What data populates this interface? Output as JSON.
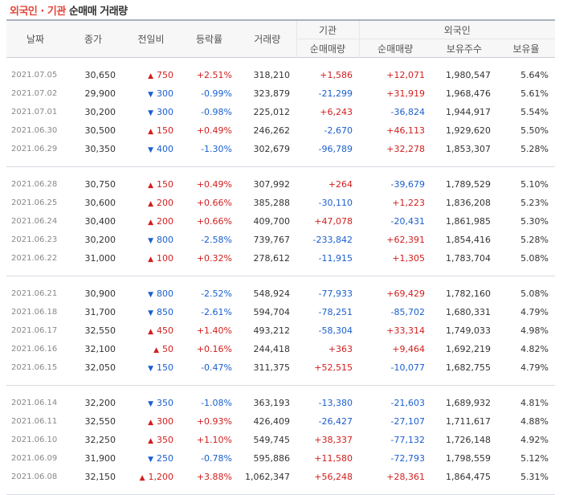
{
  "title": {
    "part1": "외국인",
    "sep": " · ",
    "part2": "기관",
    "part3": " 순매매 거래량"
  },
  "headers": {
    "date": "날짜",
    "close": "종가",
    "change": "전일비",
    "rate": "등락률",
    "volume": "거래량",
    "institution": "기관",
    "foreign": "외국인",
    "inst_net": "순매매량",
    "foreign_net": "순매매량",
    "holdings": "보유주수",
    "ratio": "보유율"
  },
  "colors": {
    "up": "#d21e1e",
    "down": "#1b5fcf",
    "title_accent": "#e2463b"
  },
  "groups": [
    [
      {
        "date": "2021.07.05",
        "close": "30,650",
        "dir": "up",
        "change": "750",
        "rate": "+2.51%",
        "volume": "318,210",
        "inst": "+1,586",
        "foreign": "+12,071",
        "holdings": "1,980,547",
        "ratio": "5.64%"
      },
      {
        "date": "2021.07.02",
        "close": "29,900",
        "dir": "down",
        "change": "300",
        "rate": "-0.99%",
        "volume": "323,879",
        "inst": "-21,299",
        "foreign": "+31,919",
        "holdings": "1,968,476",
        "ratio": "5.61%"
      },
      {
        "date": "2021.07.01",
        "close": "30,200",
        "dir": "down",
        "change": "300",
        "rate": "-0.98%",
        "volume": "225,012",
        "inst": "+6,243",
        "foreign": "-36,824",
        "holdings": "1,944,917",
        "ratio": "5.54%"
      },
      {
        "date": "2021.06.30",
        "close": "30,500",
        "dir": "up",
        "change": "150",
        "rate": "+0.49%",
        "volume": "246,262",
        "inst": "-2,670",
        "foreign": "+46,113",
        "holdings": "1,929,620",
        "ratio": "5.50%"
      },
      {
        "date": "2021.06.29",
        "close": "30,350",
        "dir": "down",
        "change": "400",
        "rate": "-1.30%",
        "volume": "302,679",
        "inst": "-96,789",
        "foreign": "+32,278",
        "holdings": "1,853,307",
        "ratio": "5.28%"
      }
    ],
    [
      {
        "date": "2021.06.28",
        "close": "30,750",
        "dir": "up",
        "change": "150",
        "rate": "+0.49%",
        "volume": "307,992",
        "inst": "+264",
        "foreign": "-39,679",
        "holdings": "1,789,529",
        "ratio": "5.10%"
      },
      {
        "date": "2021.06.25",
        "close": "30,600",
        "dir": "up",
        "change": "200",
        "rate": "+0.66%",
        "volume": "385,288",
        "inst": "-30,110",
        "foreign": "+1,223",
        "holdings": "1,836,208",
        "ratio": "5.23%"
      },
      {
        "date": "2021.06.24",
        "close": "30,400",
        "dir": "up",
        "change": "200",
        "rate": "+0.66%",
        "volume": "409,700",
        "inst": "+47,078",
        "foreign": "-20,431",
        "holdings": "1,861,985",
        "ratio": "5.30%"
      },
      {
        "date": "2021.06.23",
        "close": "30,200",
        "dir": "down",
        "change": "800",
        "rate": "-2.58%",
        "volume": "739,767",
        "inst": "-233,842",
        "foreign": "+62,391",
        "holdings": "1,854,416",
        "ratio": "5.28%"
      },
      {
        "date": "2021.06.22",
        "close": "31,000",
        "dir": "up",
        "change": "100",
        "rate": "+0.32%",
        "volume": "278,612",
        "inst": "-11,915",
        "foreign": "+1,305",
        "holdings": "1,783,704",
        "ratio": "5.08%"
      }
    ],
    [
      {
        "date": "2021.06.21",
        "close": "30,900",
        "dir": "down",
        "change": "800",
        "rate": "-2.52%",
        "volume": "548,924",
        "inst": "-77,933",
        "foreign": "+69,429",
        "holdings": "1,782,160",
        "ratio": "5.08%"
      },
      {
        "date": "2021.06.18",
        "close": "31,700",
        "dir": "down",
        "change": "850",
        "rate": "-2.61%",
        "volume": "594,704",
        "inst": "-78,251",
        "foreign": "-85,702",
        "holdings": "1,680,331",
        "ratio": "4.79%"
      },
      {
        "date": "2021.06.17",
        "close": "32,550",
        "dir": "up",
        "change": "450",
        "rate": "+1.40%",
        "volume": "493,212",
        "inst": "-58,304",
        "foreign": "+33,314",
        "holdings": "1,749,033",
        "ratio": "4.98%"
      },
      {
        "date": "2021.06.16",
        "close": "32,100",
        "dir": "up",
        "change": "50",
        "rate": "+0.16%",
        "volume": "244,418",
        "inst": "+363",
        "foreign": "+9,464",
        "holdings": "1,692,219",
        "ratio": "4.82%"
      },
      {
        "date": "2021.06.15",
        "close": "32,050",
        "dir": "down",
        "change": "150",
        "rate": "-0.47%",
        "volume": "311,375",
        "inst": "+52,515",
        "foreign": "-10,077",
        "holdings": "1,682,755",
        "ratio": "4.79%"
      }
    ],
    [
      {
        "date": "2021.06.14",
        "close": "32,200",
        "dir": "down",
        "change": "350",
        "rate": "-1.08%",
        "volume": "363,193",
        "inst": "-13,380",
        "foreign": "-21,603",
        "holdings": "1,689,932",
        "ratio": "4.81%"
      },
      {
        "date": "2021.06.11",
        "close": "32,550",
        "dir": "up",
        "change": "300",
        "rate": "+0.93%",
        "volume": "426,409",
        "inst": "-26,427",
        "foreign": "-27,107",
        "holdings": "1,711,617",
        "ratio": "4.88%"
      },
      {
        "date": "2021.06.10",
        "close": "32,250",
        "dir": "up",
        "change": "350",
        "rate": "+1.10%",
        "volume": "549,745",
        "inst": "+38,337",
        "foreign": "-77,132",
        "holdings": "1,726,148",
        "ratio": "4.92%"
      },
      {
        "date": "2021.06.09",
        "close": "31,900",
        "dir": "down",
        "change": "250",
        "rate": "-0.78%",
        "volume": "595,886",
        "inst": "+11,580",
        "foreign": "-72,793",
        "holdings": "1,798,559",
        "ratio": "5.12%"
      },
      {
        "date": "2021.06.08",
        "close": "32,150",
        "dir": "up",
        "change": "1,200",
        "rate": "+3.88%",
        "volume": "1,062,347",
        "inst": "+56,248",
        "foreign": "+28,361",
        "holdings": "1,864,475",
        "ratio": "5.31%"
      }
    ]
  ]
}
